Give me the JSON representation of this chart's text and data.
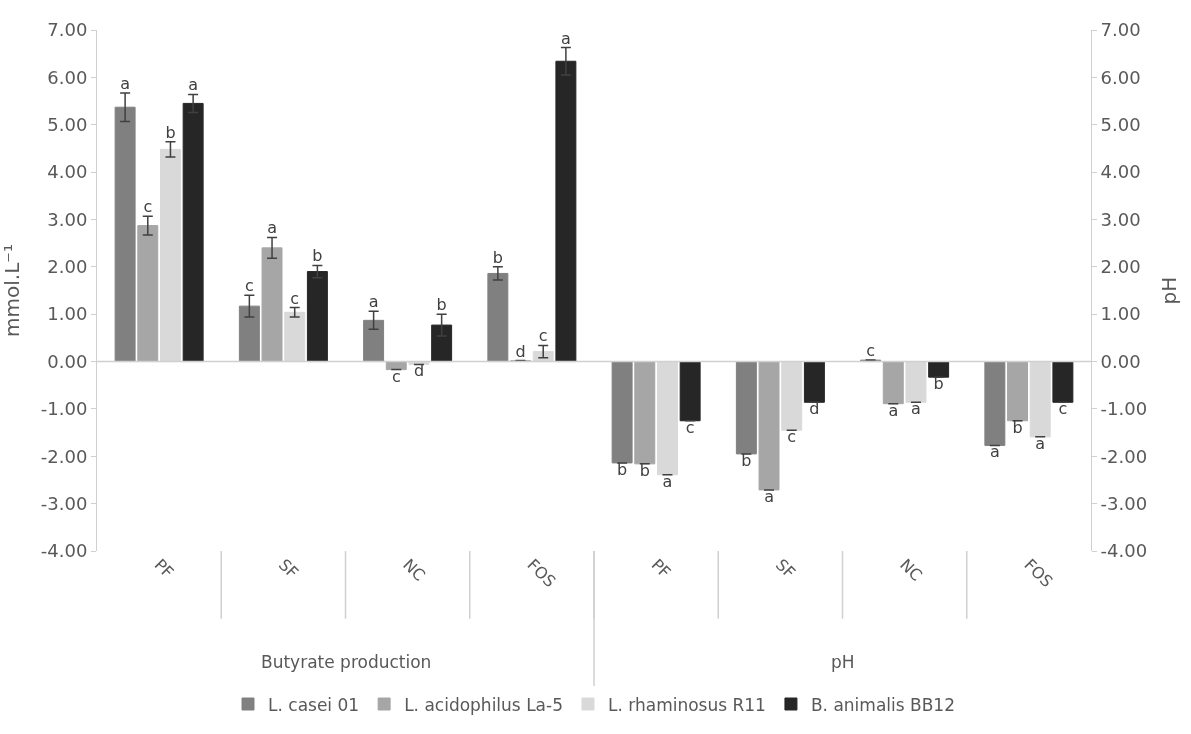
{
  "chart_data": {
    "type": "bar",
    "categories": [
      "PF",
      "SF",
      "NC",
      "FOS",
      "PF",
      "SF",
      "NC",
      "FOS"
    ],
    "ylabel": "mmol.L⁻¹",
    "y2label": "pH",
    "annotations": [
      "Butyrate production",
      "pH"
    ],
    "series": [
      {
        "name": "L. casei 01",
        "color": "#808080",
        "values": [
          5.37,
          1.17,
          0.87,
          1.86,
          -2.14,
          -1.95,
          0.03,
          -1.77
        ],
        "errors": [
          0.3,
          0.23,
          0.19,
          0.14,
          null,
          null,
          null,
          null
        ],
        "value_labels": [
          "a",
          "c",
          "a",
          "b",
          "b",
          "b",
          "c",
          "a"
        ]
      },
      {
        "name": "L. acidophilus La-5",
        "color": "#a6a6a6",
        "values": [
          2.87,
          2.4,
          -0.17,
          0.02,
          -2.16,
          -2.71,
          -0.89,
          -1.25
        ],
        "errors": [
          0.2,
          0.22,
          null,
          null,
          null,
          null,
          null,
          null
        ],
        "value_labels": [
          "c",
          "a",
          "c",
          "d",
          "b",
          "a",
          "a",
          "b"
        ]
      },
      {
        "name": "L. rhaminosus R11",
        "color": "#d9d9d9",
        "values": [
          4.48,
          1.04,
          -0.06,
          0.21,
          -2.39,
          -1.45,
          -0.86,
          -1.59
        ],
        "errors": [
          0.16,
          0.1,
          null,
          0.13,
          null,
          null,
          null,
          null
        ],
        "value_labels": [
          "b",
          "c",
          "d",
          "c",
          "a",
          "c",
          "a",
          "a"
        ]
      },
      {
        "name": "B. animalis BB12",
        "color": "#262626",
        "values": [
          5.45,
          1.9,
          0.77,
          6.34,
          -1.25,
          -0.86,
          -0.33,
          -0.86
        ],
        "errors": [
          0.19,
          0.13,
          0.23,
          0.29,
          null,
          null,
          null,
          null
        ],
        "value_labels": [
          "a",
          "b",
          "b",
          "a",
          "c",
          "d",
          "b",
          "c"
        ]
      }
    ],
    "ylim": [
      -4,
      7
    ],
    "yticks": [
      {
        "value": -4,
        "label": "-4.00"
      },
      {
        "value": -3,
        "label": "-3.00"
      },
      {
        "value": -2,
        "label": "-2.00"
      },
      {
        "value": -1,
        "label": "-1.00"
      },
      {
        "value": 0,
        "label": "0.00"
      },
      {
        "value": 1,
        "label": "1.00"
      },
      {
        "value": 2,
        "label": "2.00"
      },
      {
        "value": 3,
        "label": "3.00"
      },
      {
        "value": 4,
        "label": "4.00"
      },
      {
        "value": 5,
        "label": "5.00"
      },
      {
        "value": 6,
        "label": "6.00"
      },
      {
        "value": 7,
        "label": "7.00"
      }
    ],
    "y2lim": [
      -4,
      7
    ],
    "y2ticks": [
      {
        "value": -4,
        "label": "-4.00"
      },
      {
        "value": -3,
        "label": "-3.00"
      },
      {
        "value": -2,
        "label": "-2.00"
      },
      {
        "value": -1,
        "label": "-1.00"
      },
      {
        "value": 0,
        "label": "0.00"
      },
      {
        "value": 1,
        "label": "1.00"
      },
      {
        "value": 2,
        "label": "2.00"
      },
      {
        "value": 3,
        "label": "3.00"
      },
      {
        "value": 4,
        "label": "4.00"
      },
      {
        "value": 5,
        "label": "5.00"
      },
      {
        "value": 6,
        "label": "6.00"
      },
      {
        "value": 7,
        "label": "7.00"
      }
    ],
    "ref_lines": [
      {
        "axis": "y",
        "value": 0,
        "color": "#d0d0d0"
      }
    ],
    "grid": false,
    "legend": "bottom"
  }
}
